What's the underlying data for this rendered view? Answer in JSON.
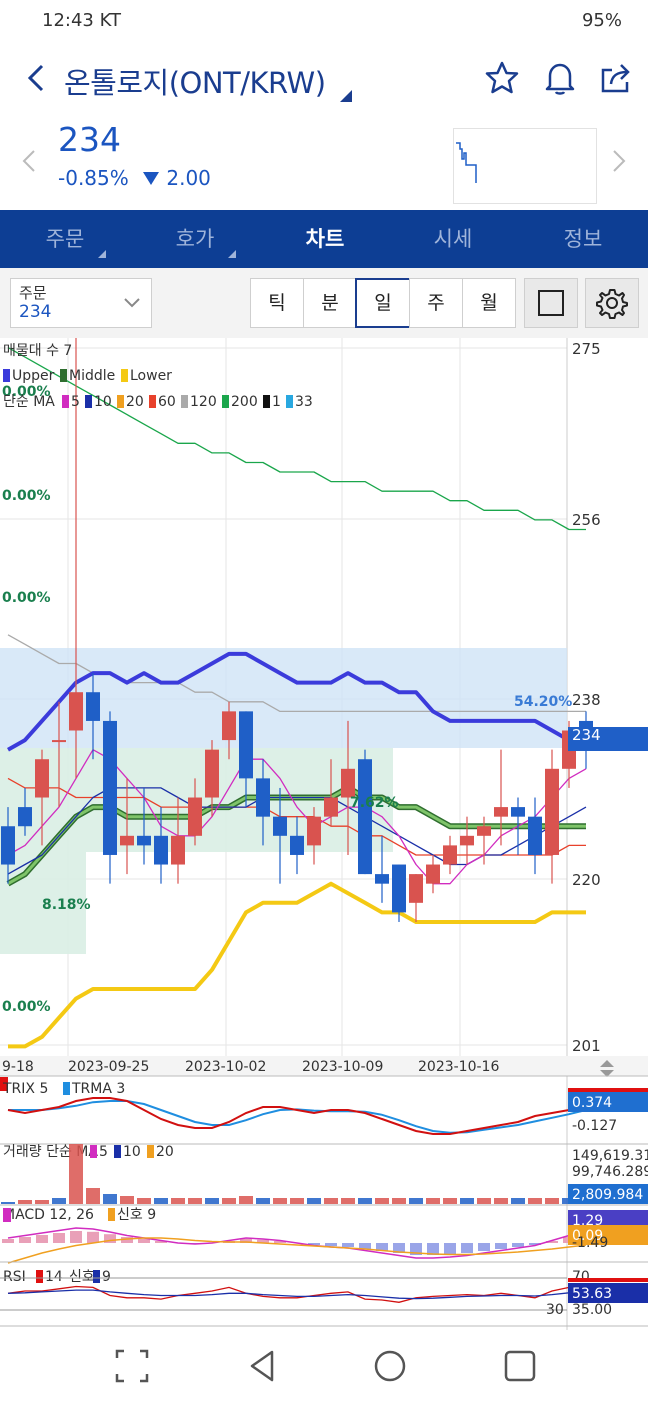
{
  "status_bar": {
    "time": "12:43 KT",
    "right": "95%"
  },
  "header": {
    "title": "온톨로지(ONT/KRW)"
  },
  "price": {
    "value": "234",
    "pct": "-0.85%",
    "change": "2.00"
  },
  "tabs": [
    {
      "label": "주문"
    },
    {
      "label": "호가"
    },
    {
      "label": "차트"
    },
    {
      "label": "시세"
    },
    {
      "label": "정보"
    }
  ],
  "controls": {
    "order_label": "주문",
    "order_value": "234",
    "periods": [
      "틱",
      "분",
      "일",
      "주",
      "월"
    ]
  },
  "chart_data": {
    "type": "candlestick",
    "main_legends": [
      "매물대 수 7",
      "Upper",
      "Middle",
      "Lower",
      "단순 MA",
      "5",
      "10",
      "20",
      "60",
      "120",
      "200",
      "1",
      "33"
    ],
    "y_ticks": [
      "275",
      "256",
      "238",
      "234",
      "220",
      "201"
    ],
    "x_ticks": [
      "9-18",
      "2023-09-25",
      "2023-10-02",
      "2023-10-09",
      "2023-10-16"
    ],
    "profile_labels": [
      "0.00%",
      "0.00%",
      "0.00%",
      "54.20%",
      "7.62%",
      "8.18%",
      "0.00%"
    ],
    "candles": [
      {
        "o": 225,
        "h": 227,
        "l": 219,
        "c": 221
      },
      {
        "o": 227,
        "h": 229,
        "l": 224,
        "c": 225
      },
      {
        "o": 228,
        "h": 233,
        "l": 223,
        "c": 232
      },
      {
        "o": 234,
        "h": 238,
        "l": 227,
        "c": 234
      },
      {
        "o": 235,
        "h": 276,
        "l": 230,
        "c": 239
      },
      {
        "o": 239,
        "h": 241,
        "l": 232,
        "c": 236
      },
      {
        "o": 236,
        "h": 237,
        "l": 219,
        "c": 222
      },
      {
        "o": 223,
        "h": 230,
        "l": 220,
        "c": 224
      },
      {
        "o": 224,
        "h": 229,
        "l": 221,
        "c": 223
      },
      {
        "o": 224,
        "h": 227,
        "l": 219,
        "c": 221
      },
      {
        "o": 221,
        "h": 228,
        "l": 219,
        "c": 224
      },
      {
        "o": 224,
        "h": 230,
        "l": 223,
        "c": 228
      },
      {
        "o": 228,
        "h": 234,
        "l": 226,
        "c": 233
      },
      {
        "o": 234,
        "h": 238,
        "l": 232,
        "c": 237
      },
      {
        "o": 237,
        "h": 237,
        "l": 227,
        "c": 230
      },
      {
        "o": 230,
        "h": 232,
        "l": 223,
        "c": 226
      },
      {
        "o": 226,
        "h": 229,
        "l": 219,
        "c": 224
      },
      {
        "o": 224,
        "h": 226,
        "l": 220,
        "c": 222
      },
      {
        "o": 223,
        "h": 227,
        "l": 221,
        "c": 226
      },
      {
        "o": 226,
        "h": 232,
        "l": 225,
        "c": 228
      },
      {
        "o": 228,
        "h": 236,
        "l": 222,
        "c": 231
      },
      {
        "o": 232,
        "h": 233,
        "l": 220,
        "c": 220
      },
      {
        "o": 220,
        "h": 224,
        "l": 217,
        "c": 219
      },
      {
        "o": 221,
        "h": 221,
        "l": 215,
        "c": 216
      },
      {
        "o": 217,
        "h": 220,
        "l": 215,
        "c": 220
      },
      {
        "o": 219,
        "h": 222,
        "l": 218,
        "c": 221
      },
      {
        "o": 221,
        "h": 224,
        "l": 220,
        "c": 223
      },
      {
        "o": 223,
        "h": 226,
        "l": 221,
        "c": 224
      },
      {
        "o": 224,
        "h": 226,
        "l": 221,
        "c": 225
      },
      {
        "o": 226,
        "h": 233,
        "l": 223,
        "c": 227
      },
      {
        "o": 227,
        "h": 228,
        "l": 222,
        "c": 226
      },
      {
        "o": 226,
        "h": 228,
        "l": 220,
        "c": 222
      },
      {
        "o": 222,
        "h": 233,
        "l": 219,
        "c": 231
      },
      {
        "o": 231,
        "h": 236,
        "l": 229,
        "c": 235
      },
      {
        "o": 236,
        "h": 237,
        "l": 231,
        "c": 234
      }
    ],
    "bollinger": {
      "upper": [
        233,
        234,
        236,
        238,
        240,
        241,
        241,
        240,
        241,
        240,
        240,
        241,
        242,
        243,
        243,
        242,
        241,
        240,
        240,
        240,
        241,
        240,
        240,
        239,
        239,
        237,
        236,
        236,
        236,
        236,
        236,
        236,
        235,
        234,
        234
      ],
      "middle": [
        219,
        220,
        222,
        224,
        226,
        227,
        227,
        226,
        226,
        226,
        226,
        226,
        227,
        227,
        228,
        228,
        228,
        228,
        228,
        228,
        229,
        228,
        228,
        227,
        227,
        226,
        225,
        225,
        225,
        225,
        225,
        225,
        225,
        225,
        225
      ],
      "lower": [
        202,
        202,
        203,
        205,
        207,
        208,
        208,
        208,
        208,
        208,
        208,
        208,
        210,
        213,
        216,
        217,
        217,
        217,
        218,
        219,
        218,
        217,
        216,
        216,
        215,
        215,
        215,
        215,
        215,
        215,
        215,
        215,
        216,
        216,
        216
      ]
    },
    "ma200": [
      275,
      274,
      273,
      272,
      271,
      270,
      269,
      268,
      267,
      266,
      265,
      265,
      264,
      264,
      263,
      263,
      262,
      262,
      262,
      261,
      261,
      261,
      260,
      260,
      260,
      260,
      259,
      259,
      258,
      258,
      258,
      257,
      257,
      256,
      256
    ],
    "ma120": [
      245,
      244,
      243,
      242,
      242,
      241,
      241,
      240,
      240,
      240,
      240,
      239,
      239,
      238,
      238,
      238,
      237,
      237,
      237,
      237,
      237,
      237,
      237,
      237,
      237,
      237,
      237,
      237,
      237,
      237,
      237,
      237,
      237,
      237,
      237
    ],
    "ma60": [
      230,
      229,
      229,
      229,
      228,
      228,
      228,
      228,
      228,
      227,
      227,
      227,
      227,
      227,
      227,
      227,
      226,
      226,
      226,
      225,
      225,
      224,
      224,
      223,
      222,
      222,
      222,
      222,
      222,
      222,
      222,
      222,
      222,
      223,
      223
    ],
    "ma5": [
      222,
      223,
      225,
      227,
      230,
      233,
      232,
      230,
      228,
      225,
      224,
      224,
      226,
      229,
      232,
      232,
      230,
      227,
      225,
      226,
      227,
      227,
      226,
      224,
      221,
      219,
      219,
      221,
      222,
      224,
      225,
      226,
      228,
      230,
      231
    ],
    "ma10": [
      220,
      221,
      222,
      224,
      226,
      228,
      229,
      229,
      229,
      229,
      228,
      227,
      227,
      227,
      227,
      228,
      228,
      228,
      228,
      228,
      227,
      226,
      225,
      224,
      223,
      222,
      221,
      221,
      222,
      222,
      223,
      224,
      225,
      226,
      227
    ],
    "y_min": 201,
    "y_max": 276,
    "volume_bars": [
      1,
      2,
      2,
      3,
      30,
      8,
      5,
      4,
      3,
      3,
      3,
      3,
      3,
      3,
      4,
      3,
      3,
      3,
      3,
      3,
      3,
      3,
      3,
      3,
      3,
      3,
      3,
      3,
      3,
      3,
      3,
      3,
      3,
      3,
      3
    ],
    "trix_legend": [
      "TRIX 5",
      "TRMA 3"
    ],
    "trix_values": [
      "0.374",
      "-0.127"
    ],
    "vol_legend": [
      "거래량 단순 MA",
      "5",
      "10",
      "20"
    ],
    "vol_values": [
      "149,619.314",
      "99,746.289",
      "2,809.984"
    ],
    "macd_legend": [
      "MACD 12, 26",
      "신호 9"
    ],
    "macd_values": [
      "1.29",
      "0.09",
      "-1.49"
    ],
    "rsi_legend": [
      "RSI",
      "14",
      "신호",
      "9"
    ],
    "rsi_values": [
      "70",
      "30",
      "53.63",
      "35.00"
    ]
  },
  "colors": {
    "primary": "#0d3e94",
    "up": "#d9534f",
    "down": "#1f5fc7"
  }
}
